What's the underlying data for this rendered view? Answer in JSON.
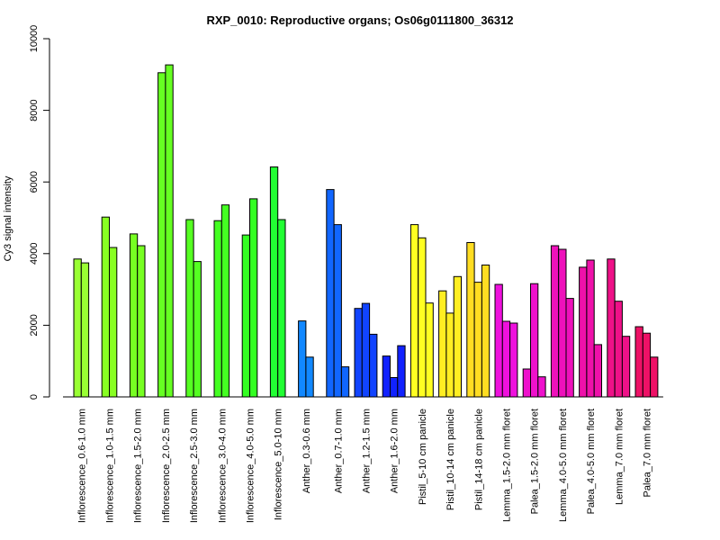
{
  "chart_data": {
    "type": "bar",
    "title": "RXP_0010: Reproductive organs; Os06g0111800_36312",
    "xlabel": "",
    "ylabel": "Cy3 signal intensity",
    "ylim": [
      0,
      10000
    ],
    "yticks": [
      0,
      2000,
      4000,
      6000,
      8000,
      10000
    ],
    "grid": false,
    "groups": [
      {
        "label": "Inflorescence_0.6-1.0 mm",
        "color": "#99ff33",
        "values": [
          3850,
          3740
        ]
      },
      {
        "label": "Inflorescence_1.0-1.5 mm",
        "color": "#88ff22",
        "values": [
          5020,
          4170
        ]
      },
      {
        "label": "Inflorescence_1.5-2.0 mm",
        "color": "#77ff22",
        "values": [
          4550,
          4220
        ]
      },
      {
        "label": "Inflorescence_2.0-2.5 mm",
        "color": "#66ff22",
        "values": [
          9050,
          9270
        ]
      },
      {
        "label": "Inflorescence_2.5-3.0 mm",
        "color": "#55ff22",
        "values": [
          4950,
          3780
        ]
      },
      {
        "label": "Inflorescence_3.0-4.0 mm",
        "color": "#44ff22",
        "values": [
          4920,
          5360
        ]
      },
      {
        "label": "Inflorescence_4.0-5.0 mm",
        "color": "#33ff22",
        "values": [
          4520,
          5530
        ]
      },
      {
        "label": "Inflorescence_5.0-10 mm",
        "color": "#22ff33",
        "values": [
          6420,
          4950
        ]
      },
      {
        "label": "Anther_0.3-0.6 mm",
        "color": "#1188ff",
        "values": [
          2120,
          1110
        ]
      },
      {
        "label": "Anther_0.7-1.0 mm",
        "color": "#1166ff",
        "values": [
          5790,
          4810,
          840
        ]
      },
      {
        "label": "Anther_1.2-1.5 mm",
        "color": "#1144ff",
        "values": [
          2470,
          2610,
          1750
        ]
      },
      {
        "label": "Anther_1.6-2.0 mm",
        "color": "#1122ff",
        "values": [
          1140,
          540,
          1430
        ]
      },
      {
        "label": "Pistil_5-10 cm panicle",
        "color": "#ffff22",
        "values": [
          4810,
          4440,
          2620
        ]
      },
      {
        "label": "Pistil_10-14 cm panicle",
        "color": "#ffee22",
        "values": [
          2960,
          2340,
          3360
        ]
      },
      {
        "label": "Pistil_14-18 cm panicle",
        "color": "#ffdd22",
        "values": [
          4310,
          3200,
          3680
        ]
      },
      {
        "label": "Lemma_1.5-2.0 mm floret",
        "color": "#ee11dd",
        "values": [
          3140,
          2110,
          2060
        ]
      },
      {
        "label": "Palea_1.5-2.0 mm floret",
        "color": "#ee11cc",
        "values": [
          780,
          3160,
          560
        ]
      },
      {
        "label": "Lemma_4.0-5.0 mm floret",
        "color": "#ee11bb",
        "values": [
          4220,
          4120,
          2750
        ]
      },
      {
        "label": "Palea_4.0-5.0 mm floret",
        "color": "#ee11aa",
        "values": [
          3620,
          3820,
          1460
        ]
      },
      {
        "label": "Lemma_7.0 mm floret",
        "color": "#ee1188",
        "values": [
          3850,
          2670,
          1690
        ]
      },
      {
        "label": "Palea_7.0 mm floret",
        "color": "#ee1166",
        "values": [
          1960,
          1780,
          1110
        ]
      }
    ]
  }
}
